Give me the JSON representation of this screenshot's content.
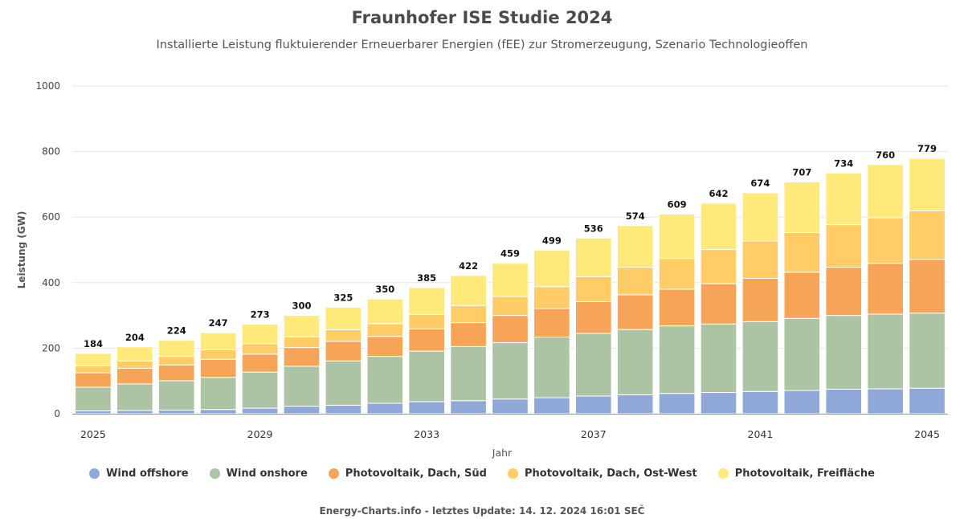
{
  "chart_data": {
    "type": "bar",
    "stacked": true,
    "title": "Fraunhofer ISE Studie 2024",
    "subtitle": "Installierte Leistung fluktuierender Erneuerbarer Energien (fEE) zur Stromerzeugung, Szenario Technologieoffen",
    "xlabel": "Jahr",
    "ylabel": "Leistung (GW)",
    "ylim": [
      0,
      1000
    ],
    "yticks": [
      0,
      200,
      400,
      600,
      800,
      1000
    ],
    "xtick_labels": [
      "2025",
      "2029",
      "2033",
      "2037",
      "2041",
      "2045"
    ],
    "xtick_years": [
      2025,
      2029,
      2033,
      2037,
      2041,
      2045
    ],
    "categories": [
      2025,
      2026,
      2027,
      2028,
      2029,
      2030,
      2031,
      2032,
      2033,
      2034,
      2035,
      2036,
      2037,
      2038,
      2039,
      2040,
      2041,
      2042,
      2043,
      2044,
      2045
    ],
    "totals": [
      184,
      204,
      224,
      247,
      273,
      300,
      325,
      350,
      385,
      422,
      459,
      499,
      536,
      574,
      609,
      642,
      674,
      707,
      734,
      760,
      779
    ],
    "grid": true,
    "legend_position": "bottom",
    "series": [
      {
        "name": "Wind offshore",
        "color": "#90a8d8",
        "values": [
          9,
          10,
          11,
          13,
          17,
          23,
          26,
          32,
          37,
          40,
          45,
          49,
          54,
          58,
          62,
          65,
          68,
          71,
          75,
          76,
          78
        ]
      },
      {
        "name": "Wind onshore",
        "color": "#adc4a4",
        "values": [
          72,
          81,
          90,
          98,
          110,
          122,
          135,
          143,
          154,
          165,
          172,
          185,
          191,
          199,
          206,
          209,
          213,
          220,
          225,
          228,
          229
        ]
      },
      {
        "name": "Photovoltaik, Dach, Süd",
        "color": "#f6a458",
        "values": [
          44,
          48,
          48,
          55,
          55,
          57,
          60,
          61,
          68,
          73,
          83,
          87,
          97,
          106,
          112,
          123,
          132,
          141,
          147,
          155,
          164
        ]
      },
      {
        "name": "Photovoltaik, Dach, Ost-West",
        "color": "#ffcc66",
        "values": [
          21,
          22,
          26,
          29,
          32,
          33,
          35,
          39,
          44,
          52,
          58,
          67,
          76,
          84,
          94,
          104,
          114,
          121,
          130,
          139,
          148
        ]
      },
      {
        "name": "Photovoltaik, Freifläche",
        "color": "#ffe97a",
        "values": [
          38,
          43,
          49,
          52,
          59,
          65,
          69,
          75,
          82,
          92,
          101,
          111,
          118,
          127,
          135,
          141,
          147,
          154,
          157,
          162,
          160
        ]
      }
    ]
  },
  "footer": "Energy-Charts.info - letztes Update: 14. 12. 2024 16:01 SEČ"
}
